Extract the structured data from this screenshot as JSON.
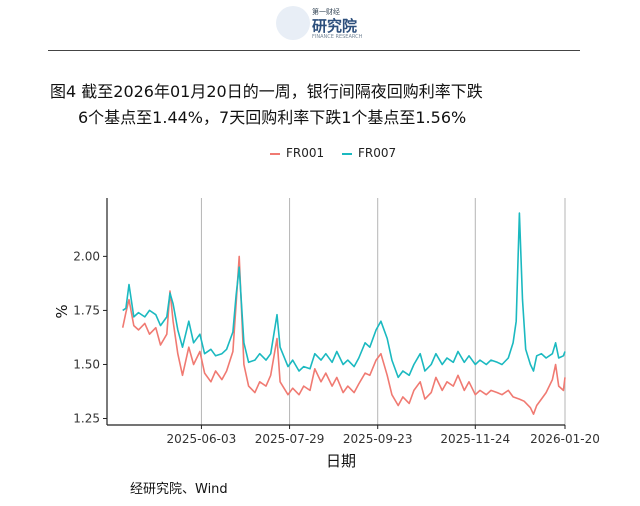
{
  "header": {
    "logo_small": "第一财经",
    "logo_name": "研究院",
    "logo_sub": "FINANCE RESEARCH"
  },
  "figure": {
    "title_line1": "图4  截至2026年01月20日的一周，银行间隔夜回购利率下跌",
    "title_line2": "6个基点至1.44%，7天回购利率下跌1个基点至1.56%",
    "source": "经研究院、Wind"
  },
  "colors": {
    "FR001": "#f07a72",
    "FR007": "#1bb9c0"
  },
  "chart_data": {
    "type": "line",
    "xlabel": "日期",
    "ylabel": "%",
    "ylim": [
      1.22,
      2.27
    ],
    "yticks": [
      1.25,
      1.5,
      1.75,
      2.0
    ],
    "ytick_labels": [
      "1.25",
      "1.50",
      "1.75",
      "2.00"
    ],
    "xlim": [
      "2025-04-04",
      "2026-01-20"
    ],
    "xticks": [
      "2025-06-03",
      "2025-07-29",
      "2025-09-23",
      "2025-11-24",
      "2026-01-20"
    ],
    "grid": "vertical gridlines at x ticks",
    "legend": "top",
    "series": [
      {
        "name": "FR001",
        "points": [
          [
            "2025-04-14",
            1.67
          ],
          [
            "2025-04-16",
            1.74
          ],
          [
            "2025-04-18",
            1.8
          ],
          [
            "2025-04-21",
            1.68
          ],
          [
            "2025-04-24",
            1.66
          ],
          [
            "2025-04-28",
            1.69
          ],
          [
            "2025-05-01",
            1.64
          ],
          [
            "2025-05-05",
            1.67
          ],
          [
            "2025-05-08",
            1.59
          ],
          [
            "2025-05-12",
            1.64
          ],
          [
            "2025-05-14",
            1.84
          ],
          [
            "2025-05-16",
            1.7
          ],
          [
            "2025-05-19",
            1.55
          ],
          [
            "2025-05-22",
            1.45
          ],
          [
            "2025-05-26",
            1.58
          ],
          [
            "2025-05-29",
            1.5
          ],
          [
            "2025-06-02",
            1.56
          ],
          [
            "2025-06-05",
            1.46
          ],
          [
            "2025-06-09",
            1.42
          ],
          [
            "2025-06-12",
            1.47
          ],
          [
            "2025-06-16",
            1.43
          ],
          [
            "2025-06-19",
            1.47
          ],
          [
            "2025-06-23",
            1.56
          ],
          [
            "2025-06-25",
            1.78
          ],
          [
            "2025-06-27",
            2.0
          ],
          [
            "2025-06-30",
            1.5
          ],
          [
            "2025-07-03",
            1.4
          ],
          [
            "2025-07-07",
            1.37
          ],
          [
            "2025-07-10",
            1.42
          ],
          [
            "2025-07-14",
            1.4
          ],
          [
            "2025-07-17",
            1.45
          ],
          [
            "2025-07-21",
            1.62
          ],
          [
            "2025-07-23",
            1.42
          ],
          [
            "2025-07-28",
            1.36
          ],
          [
            "2025-07-31",
            1.39
          ],
          [
            "2025-08-04",
            1.36
          ],
          [
            "2025-08-07",
            1.4
          ],
          [
            "2025-08-11",
            1.38
          ],
          [
            "2025-08-14",
            1.48
          ],
          [
            "2025-08-18",
            1.42
          ],
          [
            "2025-08-21",
            1.46
          ],
          [
            "2025-08-25",
            1.4
          ],
          [
            "2025-08-28",
            1.44
          ],
          [
            "2025-09-01",
            1.37
          ],
          [
            "2025-09-04",
            1.4
          ],
          [
            "2025-09-08",
            1.37
          ],
          [
            "2025-09-11",
            1.41
          ],
          [
            "2025-09-15",
            1.46
          ],
          [
            "2025-09-18",
            1.45
          ],
          [
            "2025-09-22",
            1.52
          ],
          [
            "2025-09-25",
            1.55
          ],
          [
            "2025-09-29",
            1.45
          ],
          [
            "2025-10-02",
            1.36
          ],
          [
            "2025-10-06",
            1.31
          ],
          [
            "2025-10-09",
            1.35
          ],
          [
            "2025-10-13",
            1.32
          ],
          [
            "2025-10-16",
            1.38
          ],
          [
            "2025-10-20",
            1.42
          ],
          [
            "2025-10-23",
            1.34
          ],
          [
            "2025-10-27",
            1.37
          ],
          [
            "2025-10-30",
            1.44
          ],
          [
            "2025-11-03",
            1.38
          ],
          [
            "2025-11-06",
            1.42
          ],
          [
            "2025-11-10",
            1.4
          ],
          [
            "2025-11-13",
            1.45
          ],
          [
            "2025-11-17",
            1.38
          ],
          [
            "2025-11-20",
            1.42
          ],
          [
            "2025-11-24",
            1.36
          ],
          [
            "2025-11-27",
            1.38
          ],
          [
            "2025-12-01",
            1.36
          ],
          [
            "2025-12-04",
            1.38
          ],
          [
            "2025-12-08",
            1.37
          ],
          [
            "2025-12-11",
            1.36
          ],
          [
            "2025-12-15",
            1.38
          ],
          [
            "2025-12-18",
            1.35
          ],
          [
            "2025-12-22",
            1.34
          ],
          [
            "2025-12-25",
            1.33
          ],
          [
            "2025-12-29",
            1.3
          ],
          [
            "2025-12-31",
            1.27
          ],
          [
            "2026-01-02",
            1.31
          ],
          [
            "2026-01-05",
            1.34
          ],
          [
            "2026-01-08",
            1.37
          ],
          [
            "2026-01-12",
            1.43
          ],
          [
            "2026-01-14",
            1.5
          ],
          [
            "2026-01-16",
            1.4
          ],
          [
            "2026-01-19",
            1.38
          ],
          [
            "2026-01-20",
            1.44
          ]
        ]
      },
      {
        "name": "FR007",
        "points": [
          [
            "2025-04-14",
            1.75
          ],
          [
            "2025-04-16",
            1.76
          ],
          [
            "2025-04-18",
            1.87
          ],
          [
            "2025-04-21",
            1.72
          ],
          [
            "2025-04-24",
            1.74
          ],
          [
            "2025-04-28",
            1.72
          ],
          [
            "2025-05-01",
            1.75
          ],
          [
            "2025-05-05",
            1.73
          ],
          [
            "2025-05-08",
            1.68
          ],
          [
            "2025-05-12",
            1.72
          ],
          [
            "2025-05-14",
            1.83
          ],
          [
            "2025-05-16",
            1.78
          ],
          [
            "2025-05-19",
            1.66
          ],
          [
            "2025-05-22",
            1.58
          ],
          [
            "2025-05-26",
            1.7
          ],
          [
            "2025-05-29",
            1.6
          ],
          [
            "2025-06-02",
            1.64
          ],
          [
            "2025-06-05",
            1.55
          ],
          [
            "2025-06-09",
            1.57
          ],
          [
            "2025-06-12",
            1.54
          ],
          [
            "2025-06-16",
            1.55
          ],
          [
            "2025-06-19",
            1.57
          ],
          [
            "2025-06-23",
            1.65
          ],
          [
            "2025-06-25",
            1.82
          ],
          [
            "2025-06-27",
            1.95
          ],
          [
            "2025-06-30",
            1.6
          ],
          [
            "2025-07-03",
            1.51
          ],
          [
            "2025-07-07",
            1.52
          ],
          [
            "2025-07-10",
            1.55
          ],
          [
            "2025-07-14",
            1.52
          ],
          [
            "2025-07-17",
            1.55
          ],
          [
            "2025-07-21",
            1.73
          ],
          [
            "2025-07-23",
            1.58
          ],
          [
            "2025-07-28",
            1.49
          ],
          [
            "2025-07-31",
            1.52
          ],
          [
            "2025-08-04",
            1.47
          ],
          [
            "2025-08-07",
            1.49
          ],
          [
            "2025-08-11",
            1.48
          ],
          [
            "2025-08-14",
            1.55
          ],
          [
            "2025-08-18",
            1.52
          ],
          [
            "2025-08-21",
            1.55
          ],
          [
            "2025-08-25",
            1.51
          ],
          [
            "2025-08-28",
            1.56
          ],
          [
            "2025-09-01",
            1.5
          ],
          [
            "2025-09-04",
            1.52
          ],
          [
            "2025-09-08",
            1.49
          ],
          [
            "2025-09-11",
            1.53
          ],
          [
            "2025-09-15",
            1.6
          ],
          [
            "2025-09-18",
            1.58
          ],
          [
            "2025-09-22",
            1.66
          ],
          [
            "2025-09-25",
            1.7
          ],
          [
            "2025-09-29",
            1.62
          ],
          [
            "2025-10-02",
            1.52
          ],
          [
            "2025-10-06",
            1.44
          ],
          [
            "2025-10-09",
            1.47
          ],
          [
            "2025-10-13",
            1.45
          ],
          [
            "2025-10-16",
            1.5
          ],
          [
            "2025-10-20",
            1.55
          ],
          [
            "2025-10-23",
            1.47
          ],
          [
            "2025-10-27",
            1.5
          ],
          [
            "2025-10-30",
            1.55
          ],
          [
            "2025-11-03",
            1.5
          ],
          [
            "2025-11-06",
            1.53
          ],
          [
            "2025-11-10",
            1.51
          ],
          [
            "2025-11-13",
            1.56
          ],
          [
            "2025-11-17",
            1.51
          ],
          [
            "2025-11-20",
            1.54
          ],
          [
            "2025-11-24",
            1.5
          ],
          [
            "2025-11-27",
            1.52
          ],
          [
            "2025-12-01",
            1.5
          ],
          [
            "2025-12-04",
            1.52
          ],
          [
            "2025-12-08",
            1.51
          ],
          [
            "2025-12-11",
            1.5
          ],
          [
            "2025-12-15",
            1.53
          ],
          [
            "2025-12-18",
            1.6
          ],
          [
            "2025-12-20",
            1.7
          ],
          [
            "2025-12-22",
            2.2
          ],
          [
            "2025-12-24",
            1.8
          ],
          [
            "2025-12-26",
            1.57
          ],
          [
            "2025-12-29",
            1.5
          ],
          [
            "2025-12-31",
            1.47
          ],
          [
            "2026-01-02",
            1.54
          ],
          [
            "2026-01-05",
            1.55
          ],
          [
            "2026-01-08",
            1.53
          ],
          [
            "2026-01-12",
            1.55
          ],
          [
            "2026-01-14",
            1.6
          ],
          [
            "2026-01-16",
            1.53
          ],
          [
            "2026-01-19",
            1.54
          ],
          [
            "2026-01-20",
            1.56
          ]
        ]
      }
    ]
  }
}
